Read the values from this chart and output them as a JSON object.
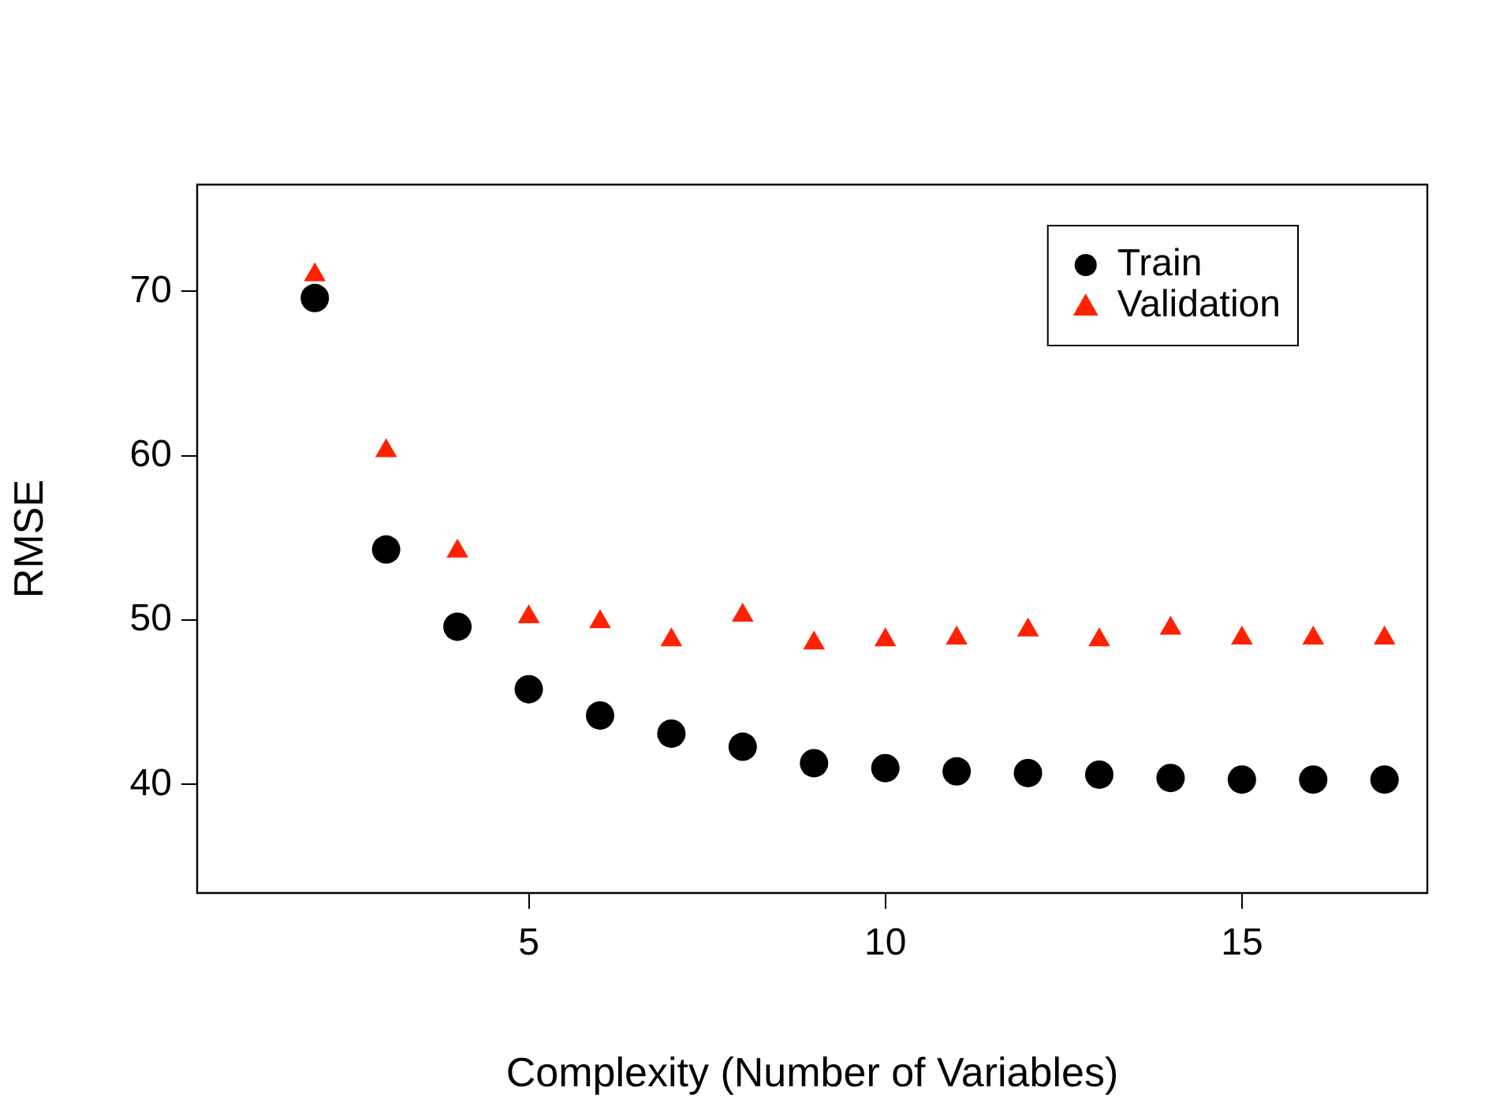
{
  "chart_data": {
    "type": "scatter",
    "xlabel": "Complexity (Number of Variables)",
    "ylabel": "RMSE",
    "x": [
      2,
      3,
      4,
      5,
      6,
      7,
      8,
      9,
      10,
      11,
      12,
      13,
      14,
      15,
      16,
      17
    ],
    "series": [
      {
        "name": "Train",
        "color": "#000000",
        "marker": "circle",
        "values": [
          69.6,
          54.3,
          49.6,
          45.8,
          44.2,
          43.1,
          42.3,
          41.3,
          41.0,
          40.8,
          40.7,
          40.6,
          40.4,
          40.3,
          40.3,
          40.3
        ]
      },
      {
        "name": "Validation",
        "color": "#ff2200",
        "marker": "triangle",
        "values": [
          71.0,
          60.3,
          54.2,
          50.2,
          49.9,
          48.8,
          50.3,
          48.6,
          48.8,
          48.9,
          49.4,
          48.8,
          49.5,
          48.9,
          48.9,
          48.9
        ]
      }
    ],
    "xlim": [
      0.35,
      17.6
    ],
    "xticks": [
      5,
      10,
      15
    ],
    "ylim": [
      33.4,
      76.5
    ],
    "yticks": [
      40,
      50,
      60,
      70
    ],
    "legend": "top right",
    "grid": false
  }
}
